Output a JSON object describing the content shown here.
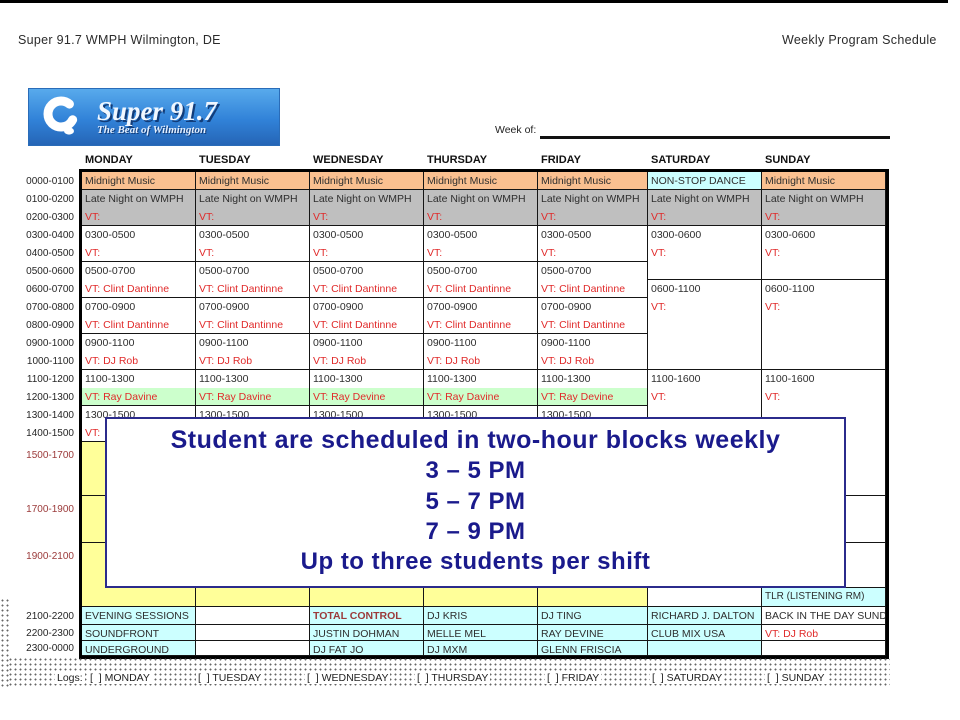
{
  "header": {
    "left": "Super 91.7 WMPH Wilmington, DE",
    "right": "Weekly Program Schedule"
  },
  "logo": {
    "title": "Super 91.7",
    "subtitle": "The Beat of Wilmington"
  },
  "week_of": {
    "label": "Week of:"
  },
  "days": [
    "MONDAY",
    "TUESDAY",
    "WEDNESDAY",
    "THURSDAY",
    "FRIDAY",
    "SATURDAY",
    "SUNDAY"
  ],
  "time_rows": [
    {
      "label": "0000-0100"
    },
    {
      "label": "0100-0200"
    },
    {
      "label": "0200-0300"
    },
    {
      "label": "0300-0400"
    },
    {
      "label": "0400-0500"
    },
    {
      "label": "0500-0600"
    },
    {
      "label": "0600-0700"
    },
    {
      "label": "0700-0800"
    },
    {
      "label": "0800-0900"
    },
    {
      "label": "0900-1000"
    },
    {
      "label": "1000-1100"
    },
    {
      "label": "1100-1200"
    },
    {
      "label": "1200-1300"
    },
    {
      "label": "1300-1400"
    },
    {
      "label": "1400-1500"
    },
    {
      "label": "1500-1700",
      "maroon": true
    },
    {
      "label": "1700-1900",
      "maroon": true
    },
    {
      "label": "1900-2100",
      "maroon": true
    },
    {
      "label": "2100-2200"
    },
    {
      "label": "2200-2300"
    },
    {
      "label": "2300-0000"
    }
  ],
  "colors": {
    "orange": "#FAC090",
    "gray": "#BFBFBF",
    "cyan": "#CCFFFF",
    "green": "#CCFFCC",
    "yellow": "#FFFF99",
    "red": "#E02A2A",
    "maroon": "#9B3A3A",
    "dark": "#2E2E2E",
    "navy": "#1A1A8C",
    "logo_blue": "#3182D8"
  },
  "overlay": {
    "lines": [
      "Student are scheduled in two-hour blocks weekly",
      "3 – 5 PM",
      "5 – 7 PM",
      "7 – 9 PM",
      "Up to three students per shift"
    ]
  },
  "schedule": {
    "cells": [
      {
        "d": 0,
        "r": 1,
        "bg": "orange",
        "L": [
          {
            "t": "Midnight Music"
          }
        ]
      },
      {
        "d": 0,
        "r": 2,
        "s": 2,
        "bg": "gray",
        "L": [
          {
            "t": "Late Night on WMPH"
          },
          {
            "t": "VT:",
            "c": "red"
          }
        ]
      },
      {
        "d": 0,
        "r": 4,
        "s": 2,
        "L": [
          {
            "t": "0300-0500"
          },
          {
            "t": "VT:",
            "c": "red"
          }
        ]
      },
      {
        "d": 0,
        "r": 6,
        "s": 2,
        "L": [
          {
            "t": "0500-0700"
          },
          {
            "t": "VT: Clint Dantinne",
            "c": "red"
          }
        ]
      },
      {
        "d": 0,
        "r": 8,
        "s": 2,
        "L": [
          {
            "t": "0700-0900"
          },
          {
            "t": "VT: Clint Dantinne",
            "c": "red"
          }
        ]
      },
      {
        "d": 0,
        "r": 10,
        "s": 2,
        "L": [
          {
            "t": "0900-1100"
          },
          {
            "t": "VT: DJ Rob",
            "c": "red"
          }
        ]
      },
      {
        "d": 0,
        "r": 12,
        "s": 2,
        "L": [
          {
            "t": "1100-1300"
          },
          {
            "t": "VT: Ray Davine",
            "c": "red",
            "bg": "green"
          }
        ]
      },
      {
        "d": 0,
        "r": 14,
        "s": 2,
        "L": [
          {
            "t": "1300-1500"
          },
          {
            "t": "VT:",
            "c": "red"
          }
        ]
      },
      {
        "d": 0,
        "r": 16,
        "bg": "yellow"
      },
      {
        "d": 0,
        "r": 17,
        "bg": "yellow"
      },
      {
        "d": 0,
        "r": 18,
        "bg": "yellow"
      },
      {
        "d": 0,
        "r": 19,
        "bg": "cyan",
        "L": [
          {
            "t": "EVENING SESSIONS"
          }
        ]
      },
      {
        "d": 0,
        "r": 20,
        "bg": "cyan",
        "L": [
          {
            "t": "SOUNDFRONT"
          }
        ]
      },
      {
        "d": 0,
        "r": 21,
        "bg": "cyan",
        "L": [
          {
            "t": "UNDERGROUND"
          }
        ]
      },
      {
        "d": 1,
        "r": 1,
        "bg": "orange",
        "L": [
          {
            "t": "Midnight Music"
          }
        ]
      },
      {
        "d": 1,
        "r": 2,
        "s": 2,
        "bg": "gray",
        "L": [
          {
            "t": "Late Night on WMPH"
          },
          {
            "t": "VT:",
            "c": "red"
          }
        ]
      },
      {
        "d": 1,
        "r": 4,
        "s": 2,
        "L": [
          {
            "t": "0300-0500"
          },
          {
            "t": "VT:",
            "c": "red"
          }
        ]
      },
      {
        "d": 1,
        "r": 6,
        "s": 2,
        "L": [
          {
            "t": "0500-0700"
          },
          {
            "t": "VT: Clint Dantinne",
            "c": "red"
          }
        ]
      },
      {
        "d": 1,
        "r": 8,
        "s": 2,
        "L": [
          {
            "t": "0700-0900"
          },
          {
            "t": "VT: Clint Dantinne",
            "c": "red"
          }
        ]
      },
      {
        "d": 1,
        "r": 10,
        "s": 2,
        "L": [
          {
            "t": "0900-1100"
          },
          {
            "t": "VT: DJ Rob",
            "c": "red"
          }
        ]
      },
      {
        "d": 1,
        "r": 12,
        "s": 2,
        "L": [
          {
            "t": "1100-1300"
          },
          {
            "t": "VT: Ray Davine",
            "c": "red",
            "bg": "green"
          }
        ]
      },
      {
        "d": 1,
        "r": 14,
        "s": 2,
        "L": [
          {
            "t": "1300-1500"
          },
          {
            "t": "VT:",
            "c": "red"
          }
        ]
      },
      {
        "d": 1,
        "r": 16,
        "bg": "yellow"
      },
      {
        "d": 1,
        "r": 17,
        "bg": "yellow"
      },
      {
        "d": 1,
        "r": 18,
        "bg": "yellow"
      },
      {
        "d": 1,
        "r": 19
      },
      {
        "d": 1,
        "r": 20
      },
      {
        "d": 1,
        "r": 21
      },
      {
        "d": 2,
        "r": 1,
        "bg": "orange",
        "L": [
          {
            "t": "Midnight Music"
          }
        ]
      },
      {
        "d": 2,
        "r": 2,
        "s": 2,
        "bg": "gray",
        "L": [
          {
            "t": "Late Night on WMPH"
          },
          {
            "t": "VT:",
            "c": "red"
          }
        ]
      },
      {
        "d": 2,
        "r": 4,
        "s": 2,
        "L": [
          {
            "t": "0300-0500"
          },
          {
            "t": "VT:",
            "c": "red"
          }
        ]
      },
      {
        "d": 2,
        "r": 6,
        "s": 2,
        "L": [
          {
            "t": "0500-0700"
          },
          {
            "t": "VT: Clint Dantinne",
            "c": "red"
          }
        ]
      },
      {
        "d": 2,
        "r": 8,
        "s": 2,
        "L": [
          {
            "t": "0700-0900"
          },
          {
            "t": "VT: Clint Dantinne",
            "c": "red"
          }
        ]
      },
      {
        "d": 2,
        "r": 10,
        "s": 2,
        "L": [
          {
            "t": "0900-1100"
          },
          {
            "t": "VT: DJ Rob",
            "c": "red"
          }
        ]
      },
      {
        "d": 2,
        "r": 12,
        "s": 2,
        "L": [
          {
            "t": "1100-1300"
          },
          {
            "t": "VT: Ray Devine",
            "c": "red",
            "bg": "green"
          }
        ]
      },
      {
        "d": 2,
        "r": 14,
        "s": 2,
        "L": [
          {
            "t": "1300-1500"
          },
          {
            "t": "VT:",
            "c": "red"
          }
        ]
      },
      {
        "d": 2,
        "r": 16,
        "bg": "yellow"
      },
      {
        "d": 2,
        "r": 17,
        "bg": "yellow"
      },
      {
        "d": 2,
        "r": 18,
        "bg": "yellow"
      },
      {
        "d": 2,
        "r": 19,
        "bg": "cyan",
        "L": [
          {
            "t": "TOTAL CONTROL",
            "c": "maroon",
            "b": true
          }
        ]
      },
      {
        "d": 2,
        "r": 20,
        "bg": "cyan",
        "L": [
          {
            "t": "JUSTIN DOHMAN"
          }
        ]
      },
      {
        "d": 2,
        "r": 21,
        "bg": "cyan",
        "L": [
          {
            "t": "DJ FAT JO"
          }
        ]
      },
      {
        "d": 3,
        "r": 1,
        "bg": "orange",
        "L": [
          {
            "t": "Midnight Music"
          }
        ]
      },
      {
        "d": 3,
        "r": 2,
        "s": 2,
        "bg": "gray",
        "L": [
          {
            "t": "Late Night on WMPH"
          },
          {
            "t": "VT:",
            "c": "red"
          }
        ]
      },
      {
        "d": 3,
        "r": 4,
        "s": 2,
        "L": [
          {
            "t": "0300-0500"
          },
          {
            "t": "VT:",
            "c": "red"
          }
        ]
      },
      {
        "d": 3,
        "r": 6,
        "s": 2,
        "L": [
          {
            "t": "0500-0700"
          },
          {
            "t": "VT: Clint Dantinne",
            "c": "red"
          }
        ]
      },
      {
        "d": 3,
        "r": 8,
        "s": 2,
        "L": [
          {
            "t": "0700-0900"
          },
          {
            "t": "VT: Clint Dantinne",
            "c": "red"
          }
        ]
      },
      {
        "d": 3,
        "r": 10,
        "s": 2,
        "L": [
          {
            "t": "0900-1100"
          },
          {
            "t": "VT: DJ Rob",
            "c": "red"
          }
        ]
      },
      {
        "d": 3,
        "r": 12,
        "s": 2,
        "L": [
          {
            "t": "1100-1300"
          },
          {
            "t": "VT: Ray Davine",
            "c": "red",
            "bg": "green"
          }
        ]
      },
      {
        "d": 3,
        "r": 14,
        "s": 2,
        "L": [
          {
            "t": "1300-1500"
          },
          {
            "t": "VT:",
            "c": "red"
          }
        ]
      },
      {
        "d": 3,
        "r": 16,
        "bg": "yellow"
      },
      {
        "d": 3,
        "r": 17,
        "bg": "yellow"
      },
      {
        "d": 3,
        "r": 18,
        "bg": "yellow"
      },
      {
        "d": 3,
        "r": 19,
        "bg": "cyan",
        "L": [
          {
            "t": "DJ KRIS"
          }
        ]
      },
      {
        "d": 3,
        "r": 20,
        "bg": "cyan",
        "L": [
          {
            "t": "MELLE MEL"
          }
        ]
      },
      {
        "d": 3,
        "r": 21,
        "bg": "cyan",
        "L": [
          {
            "t": "DJ MXM"
          }
        ]
      },
      {
        "d": 4,
        "r": 1,
        "bg": "orange",
        "L": [
          {
            "t": "Midnight Music"
          }
        ]
      },
      {
        "d": 4,
        "r": 2,
        "s": 2,
        "bg": "gray",
        "L": [
          {
            "t": "Late Night on WMPH"
          },
          {
            "t": "VT:",
            "c": "red"
          }
        ]
      },
      {
        "d": 4,
        "r": 4,
        "s": 2,
        "L": [
          {
            "t": "0300-0500"
          },
          {
            "t": "VT:",
            "c": "red"
          }
        ]
      },
      {
        "d": 4,
        "r": 6,
        "s": 2,
        "L": [
          {
            "t": "0500-0700"
          },
          {
            "t": "VT: Clint Dantinne",
            "c": "red"
          }
        ]
      },
      {
        "d": 4,
        "r": 8,
        "s": 2,
        "L": [
          {
            "t": "0700-0900"
          },
          {
            "t": "VT: Clint Dantinne",
            "c": "red"
          }
        ]
      },
      {
        "d": 4,
        "r": 10,
        "s": 2,
        "L": [
          {
            "t": "0900-1100"
          },
          {
            "t": "VT: DJ Rob",
            "c": "red"
          }
        ]
      },
      {
        "d": 4,
        "r": 12,
        "s": 2,
        "L": [
          {
            "t": "1100-1300"
          },
          {
            "t": "VT: Ray Devine",
            "c": "red",
            "bg": "green"
          }
        ]
      },
      {
        "d": 4,
        "r": 14,
        "s": 2,
        "L": [
          {
            "t": "1300-1500"
          },
          {
            "t": "VT:",
            "c": "red"
          }
        ]
      },
      {
        "d": 4,
        "r": 16,
        "bg": "yellow"
      },
      {
        "d": 4,
        "r": 17,
        "bg": "yellow"
      },
      {
        "d": 4,
        "r": 18,
        "bg": "yellow"
      },
      {
        "d": 4,
        "r": 19,
        "bg": "cyan",
        "L": [
          {
            "t": "DJ TING"
          }
        ]
      },
      {
        "d": 4,
        "r": 20,
        "bg": "cyan",
        "L": [
          {
            "t": "RAY DEVINE"
          }
        ]
      },
      {
        "d": 4,
        "r": 21,
        "bg": "cyan",
        "L": [
          {
            "t": "GLENN FRISCIA"
          }
        ]
      },
      {
        "d": 5,
        "r": 1,
        "bg": "cyan",
        "L": [
          {
            "t": "NON-STOP DANCE"
          }
        ]
      },
      {
        "d": 5,
        "r": 2,
        "s": 2,
        "bg": "gray",
        "L": [
          {
            "t": "Late Night on WMPH"
          },
          {
            "t": "VT:",
            "c": "red"
          }
        ]
      },
      {
        "d": 5,
        "r": 4,
        "s": 3,
        "L": [
          {
            "t": "0300-0600"
          },
          {
            "t": "VT:",
            "c": "red"
          }
        ]
      },
      {
        "d": 5,
        "r": 7,
        "s": 5,
        "L": [
          {
            "t": "0600-1100"
          },
          {
            "t": "VT:",
            "c": "red"
          }
        ]
      },
      {
        "d": 5,
        "r": 12,
        "s": 5,
        "L": [
          {
            "t": "1100-1600"
          },
          {
            "t": "VT:",
            "c": "red"
          }
        ]
      },
      {
        "d": 5,
        "r": 17
      },
      {
        "d": 5,
        "r": 18
      },
      {
        "d": 5,
        "r": 19,
        "bg": "cyan",
        "L": [
          {
            "t": "RICHARD J. DALTON"
          }
        ]
      },
      {
        "d": 5,
        "r": 20,
        "bg": "cyan",
        "L": [
          {
            "t": "CLUB MIX USA"
          }
        ]
      },
      {
        "d": 5,
        "r": 21,
        "bg": "cyan"
      },
      {
        "d": 6,
        "r": 1,
        "bg": "orange",
        "L": [
          {
            "t": "Midnight Music"
          }
        ]
      },
      {
        "d": 6,
        "r": 2,
        "s": 2,
        "bg": "gray",
        "L": [
          {
            "t": "Late Night on WMPH"
          },
          {
            "t": "VT:",
            "c": "red"
          }
        ]
      },
      {
        "d": 6,
        "r": 4,
        "s": 3,
        "L": [
          {
            "t": "0300-0600"
          },
          {
            "t": "VT:",
            "c": "red"
          }
        ]
      },
      {
        "d": 6,
        "r": 7,
        "s": 5,
        "L": [
          {
            "t": "0600-1100"
          },
          {
            "t": "VT:",
            "c": "red"
          }
        ]
      },
      {
        "d": 6,
        "r": 12,
        "s": 5,
        "L": [
          {
            "t": "1100-1600"
          },
          {
            "t": "VT:",
            "c": "red"
          }
        ]
      },
      {
        "d": 6,
        "r": 17
      },
      {
        "d": 6,
        "r": 18,
        "strip": {
          "t": "TLR (LISTENING RM)",
          "bg": "cyan"
        }
      },
      {
        "d": 6,
        "r": 19,
        "L": [
          {
            "t": "BACK IN THE DAY SUNDAY"
          }
        ]
      },
      {
        "d": 6,
        "r": 20,
        "L": [
          {
            "t": "VT: DJ Rob",
            "c": "red"
          }
        ]
      },
      {
        "d": 6,
        "r": 21
      }
    ]
  },
  "logs": {
    "label": "Logs:",
    "items": [
      "[  ] MONDAY",
      "[  ] TUESDAY",
      "[  ] WEDNESDAY",
      "[  ] THURSDAY",
      "[  ] FRIDAY",
      "[  ] SATURDAY",
      "[  ] SUNDAY"
    ]
  }
}
